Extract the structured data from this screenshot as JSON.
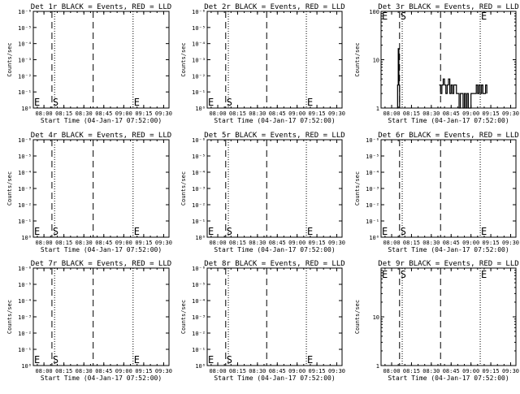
{
  "chart_data": [
    {
      "type": "line",
      "title": "Det 1r BLACK = Events, RED = LLD",
      "xlabel": "Start Time (04-Jan-17 07:52:00)",
      "ylabel": "Counts/sec",
      "x_ticks": [
        "08:00",
        "08:15",
        "08:30",
        "08:45",
        "09:00",
        "09:15",
        "09:30"
      ],
      "y_ticks": [
        "10⁰",
        "10⁻¹",
        "10⁻²",
        "10⁻³",
        "10⁻⁴",
        "10⁻⁵",
        "10⁻⁶"
      ],
      "y_scale": "log",
      "ylim": [
        "1e-6",
        "1"
      ],
      "markers": [
        {
          "label": "E",
          "time": "07:52",
          "style": "dotted"
        },
        {
          "label": "S",
          "time": "08:06",
          "style": "dashed"
        },
        {
          "label": "",
          "time": "08:08",
          "style": "dotted"
        },
        {
          "label": "",
          "time": "08:37",
          "style": "dashed"
        },
        {
          "label": "E",
          "time": "09:07",
          "style": "dotted"
        }
      ],
      "series": []
    },
    {
      "type": "line",
      "title": "Det 2r BLACK = Events, RED = LLD",
      "xlabel": "Start Time (04-Jan-17 07:52:00)",
      "ylabel": "Counts/sec",
      "x_ticks": [
        "08:00",
        "08:15",
        "08:30",
        "08:45",
        "09:00",
        "09:15",
        "09:30"
      ],
      "y_ticks": [
        "10⁰",
        "10⁻¹",
        "10⁻²",
        "10⁻³",
        "10⁻⁴",
        "10⁻⁵",
        "10⁻⁶"
      ],
      "y_scale": "log",
      "ylim": [
        "1e-6",
        "1"
      ],
      "markers": [
        {
          "label": "E",
          "time": "07:52",
          "style": "dotted"
        },
        {
          "label": "S",
          "time": "08:06",
          "style": "dashed"
        },
        {
          "label": "",
          "time": "08:08",
          "style": "dotted"
        },
        {
          "label": "",
          "time": "08:37",
          "style": "dashed"
        },
        {
          "label": "E",
          "time": "09:07",
          "style": "dotted"
        }
      ],
      "series": []
    },
    {
      "type": "line",
      "title": "Det 3r BLACK = Events, RED = LLD",
      "xlabel": "Start Time (04-Jan-17 07:52:00)",
      "ylabel": "Counts/sec",
      "x_ticks": [
        "08:00",
        "08:15",
        "08:30",
        "08:45",
        "09:00",
        "09:15",
        "09:30"
      ],
      "y_ticks": [
        "1",
        "10",
        "100"
      ],
      "y_scale": "log",
      "ylim": [
        "1",
        "100"
      ],
      "markers": [
        {
          "label": "E",
          "time": "07:52",
          "style": "dotted"
        },
        {
          "label": "S",
          "time": "08:06",
          "style": "dashed"
        },
        {
          "label": "",
          "time": "08:08",
          "style": "dotted"
        },
        {
          "label": "",
          "time": "08:37",
          "style": "dashed"
        },
        {
          "label": "E",
          "time": "09:07",
          "style": "dotted"
        }
      ],
      "series": [
        {
          "color": "#000000",
          "segments": [
            {
              "x": [
                "08:04",
                "08:04.5",
                "08:05",
                "08:05.5",
                "08:06"
              ],
              "y": [
                1,
                3,
                17,
                3,
                1
              ]
            },
            {
              "x": [
                "08:36",
                "08:37",
                "08:38",
                "08:39",
                "08:40",
                "08:41",
                "08:42",
                "08:43",
                "08:44",
                "08:45",
                "08:46",
                "08:47",
                "08:48",
                "08:49",
                "08:50",
                "08:51",
                "08:52",
                "08:53",
                "08:54",
                "08:55",
                "08:56",
                "08:57",
                "08:58",
                "08:59",
                "09:00",
                "09:01",
                "09:02",
                "09:03",
                "09:04",
                "09:05",
                "09:06",
                "09:07",
                "09:08",
                "09:09",
                "09:10",
                "09:11",
                "09:12"
              ],
              "y": [
                3,
                2,
                3,
                4,
                3,
                2,
                3,
                4,
                2,
                3,
                2,
                3,
                3,
                2,
                2,
                1,
                2,
                2,
                1,
                2,
                1,
                2,
                1,
                1,
                2,
                2,
                2,
                2,
                3,
                2,
                3,
                2,
                3,
                2,
                2,
                3,
                2
              ]
            }
          ]
        }
      ]
    },
    {
      "type": "line",
      "title": "Det 4r BLACK = Events, RED = LLD",
      "xlabel": "Start Time (04-Jan-17 07:52:00)",
      "ylabel": "Counts/sec",
      "x_ticks": [
        "08:00",
        "08:15",
        "08:30",
        "08:45",
        "09:00",
        "09:15",
        "09:30"
      ],
      "y_ticks": [
        "10⁰",
        "10⁻¹",
        "10⁻²",
        "10⁻³",
        "10⁻⁴",
        "10⁻⁵",
        "10⁻⁶"
      ],
      "y_scale": "log",
      "ylim": [
        "1e-6",
        "1"
      ],
      "markers": [
        {
          "label": "E",
          "time": "07:52",
          "style": "dotted"
        },
        {
          "label": "S",
          "time": "08:06",
          "style": "dashed"
        },
        {
          "label": "",
          "time": "08:08",
          "style": "dotted"
        },
        {
          "label": "",
          "time": "08:37",
          "style": "dashed"
        },
        {
          "label": "E",
          "time": "09:07",
          "style": "dotted"
        }
      ],
      "series": []
    },
    {
      "type": "line",
      "title": "Det 5r BLACK = Events, RED = LLD",
      "xlabel": "Start Time (04-Jan-17 07:52:00)",
      "ylabel": "Counts/sec",
      "x_ticks": [
        "08:00",
        "08:15",
        "08:30",
        "08:45",
        "09:00",
        "09:15",
        "09:30"
      ],
      "y_ticks": [
        "10⁰",
        "10⁻¹",
        "10⁻²",
        "10⁻³",
        "10⁻⁴",
        "10⁻⁵",
        "10⁻⁶"
      ],
      "y_scale": "log",
      "ylim": [
        "1e-6",
        "1"
      ],
      "markers": [
        {
          "label": "E",
          "time": "07:52",
          "style": "dotted"
        },
        {
          "label": "S",
          "time": "08:06",
          "style": "dashed"
        },
        {
          "label": "",
          "time": "08:08",
          "style": "dotted"
        },
        {
          "label": "",
          "time": "08:37",
          "style": "dashed"
        },
        {
          "label": "E",
          "time": "09:07",
          "style": "dotted"
        }
      ],
      "series": []
    },
    {
      "type": "line",
      "title": "Det 6r BLACK = Events, RED = LLD",
      "xlabel": "Start Time (04-Jan-17 07:52:00)",
      "ylabel": "Counts/sec",
      "x_ticks": [
        "08:00",
        "08:15",
        "08:30",
        "08:45",
        "09:00",
        "09:15",
        "09:30"
      ],
      "y_ticks": [
        "10⁰",
        "10⁻¹",
        "10⁻²",
        "10⁻³",
        "10⁻⁴",
        "10⁻⁵",
        "10⁻⁶"
      ],
      "y_scale": "log",
      "ylim": [
        "1e-6",
        "1"
      ],
      "markers": [
        {
          "label": "E",
          "time": "07:52",
          "style": "dotted"
        },
        {
          "label": "S",
          "time": "08:06",
          "style": "dashed"
        },
        {
          "label": "",
          "time": "08:08",
          "style": "dotted"
        },
        {
          "label": "",
          "time": "08:37",
          "style": "dashed"
        },
        {
          "label": "E",
          "time": "09:07",
          "style": "dotted"
        }
      ],
      "series": []
    },
    {
      "type": "line",
      "title": "Det 7r BLACK = Events, RED = LLD",
      "xlabel": "Start Time (04-Jan-17 07:52:00)",
      "ylabel": "Counts/sec",
      "x_ticks": [
        "08:00",
        "08:15",
        "08:30",
        "08:45",
        "09:00",
        "09:15",
        "09:30"
      ],
      "y_ticks": [
        "10⁰",
        "10⁻¹",
        "10⁻²",
        "10⁻³",
        "10⁻⁴",
        "10⁻⁵",
        "10⁻⁶"
      ],
      "y_scale": "log",
      "ylim": [
        "1e-6",
        "1"
      ],
      "markers": [
        {
          "label": "E",
          "time": "07:52",
          "style": "dotted"
        },
        {
          "label": "S",
          "time": "08:06",
          "style": "dashed"
        },
        {
          "label": "",
          "time": "08:08",
          "style": "dotted"
        },
        {
          "label": "",
          "time": "08:37",
          "style": "dashed"
        },
        {
          "label": "E",
          "time": "09:07",
          "style": "dotted"
        }
      ],
      "series": []
    },
    {
      "type": "line",
      "title": "Det 8r BLACK = Events, RED = LLD",
      "xlabel": "Start Time (04-Jan-17 07:52:00)",
      "ylabel": "Counts/sec",
      "x_ticks": [
        "08:00",
        "08:15",
        "08:30",
        "08:45",
        "09:00",
        "09:15",
        "09:30"
      ],
      "y_ticks": [
        "10⁰",
        "10⁻¹",
        "10⁻²",
        "10⁻³",
        "10⁻⁴",
        "10⁻⁵",
        "10⁻⁶"
      ],
      "y_scale": "log",
      "ylim": [
        "1e-6",
        "1"
      ],
      "markers": [
        {
          "label": "E",
          "time": "07:52",
          "style": "dotted"
        },
        {
          "label": "S",
          "time": "08:06",
          "style": "dashed"
        },
        {
          "label": "",
          "time": "08:08",
          "style": "dotted"
        },
        {
          "label": "",
          "time": "08:37",
          "style": "dashed"
        },
        {
          "label": "E",
          "time": "09:07",
          "style": "dotted"
        }
      ],
      "series": []
    },
    {
      "type": "line",
      "title": "Det 9r BLACK = Events, RED = LLD",
      "xlabel": "Start Time (04-Jan-17 07:52:00)",
      "ylabel": "Counts/sec",
      "x_ticks": [
        "08:00",
        "08:15",
        "08:30",
        "08:45",
        "09:00",
        "09:15",
        "09:30"
      ],
      "y_ticks": [
        "1",
        "10"
      ],
      "y_scale": "log",
      "ylim": [
        "1",
        "100"
      ],
      "markers": [
        {
          "label": "E",
          "time": "07:52",
          "style": "dotted"
        },
        {
          "label": "S",
          "time": "08:06",
          "style": "dashed"
        },
        {
          "label": "",
          "time": "08:08",
          "style": "dotted"
        },
        {
          "label": "",
          "time": "08:37",
          "style": "dashed"
        },
        {
          "label": "E",
          "time": "09:07",
          "style": "dotted"
        }
      ],
      "series": []
    }
  ]
}
